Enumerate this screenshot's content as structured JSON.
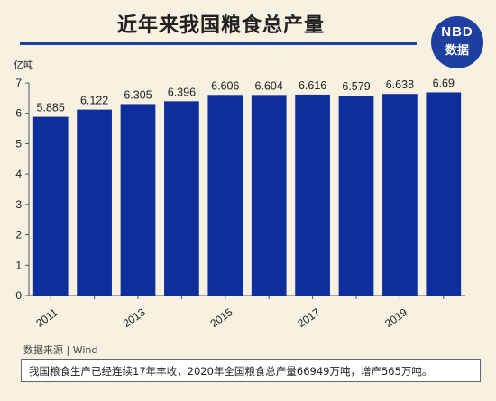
{
  "header": {
    "title": "近年来我国粮食总产量",
    "logo_line1": "NBD",
    "logo_line2": "数据"
  },
  "chart_data": {
    "type": "bar",
    "categories": [
      "2011",
      "2012",
      "2013",
      "2014",
      "2015",
      "2016",
      "2017",
      "2018",
      "2019",
      "2020"
    ],
    "values": [
      5.885,
      6.122,
      6.305,
      6.396,
      6.606,
      6.604,
      6.616,
      6.579,
      6.638,
      6.69
    ],
    "value_labels": [
      "5.885",
      "6.122",
      "6.305",
      "6.396",
      "6.606",
      "6.604",
      "6.616",
      "6.579",
      "6.638",
      "6.69"
    ],
    "x_tick_labels": [
      "2011",
      "2013",
      "2015",
      "2017",
      "2019"
    ],
    "y_ticks": [
      0,
      1,
      2,
      3,
      4,
      5,
      6,
      7
    ],
    "ylim": [
      0,
      7
    ],
    "unit": "亿吨",
    "bar_color": "#0e2e9c",
    "grid": false,
    "title": "近年来我国粮食总产量"
  },
  "footer": {
    "source": "数据来源 | Wind",
    "note": "我国粮食生产已经连续17年丰收，2020年全国粮食总产量66949万吨，增产565万吨。"
  }
}
